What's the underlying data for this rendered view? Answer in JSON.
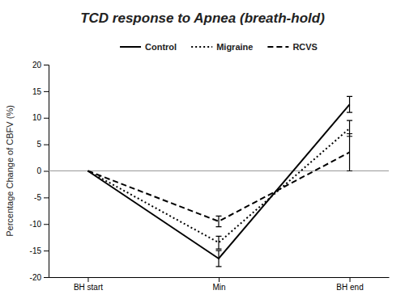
{
  "chart_data": {
    "type": "line",
    "title": "TCD response to Apnea (breath-hold)",
    "ylabel": "Percentage Change of CBFV (%)",
    "categories": [
      "BH start",
      "Min",
      "BH end"
    ],
    "series": [
      {
        "name": "Control",
        "color": "#000000",
        "line_style": "solid",
        "values": [
          0,
          -16.5,
          12.5
        ],
        "errors": [
          0,
          1.5,
          1.5
        ]
      },
      {
        "name": "Migraine",
        "color": "#000000",
        "line_style": "dotted",
        "values": [
          0,
          -13.5,
          8.0
        ],
        "errors": [
          0,
          1.2,
          1.5
        ]
      },
      {
        "name": "RCVS",
        "color": "#000000",
        "line_style": "dashed",
        "values": [
          0,
          -9.5,
          3.5
        ],
        "errors": [
          0,
          1.0,
          3.5
        ]
      }
    ],
    "ylim": [
      -20,
      20
    ],
    "yticks": [
      -20,
      -15,
      -10,
      -5,
      0,
      5,
      10,
      15,
      20
    ],
    "grid": false,
    "legend": "upper center"
  }
}
